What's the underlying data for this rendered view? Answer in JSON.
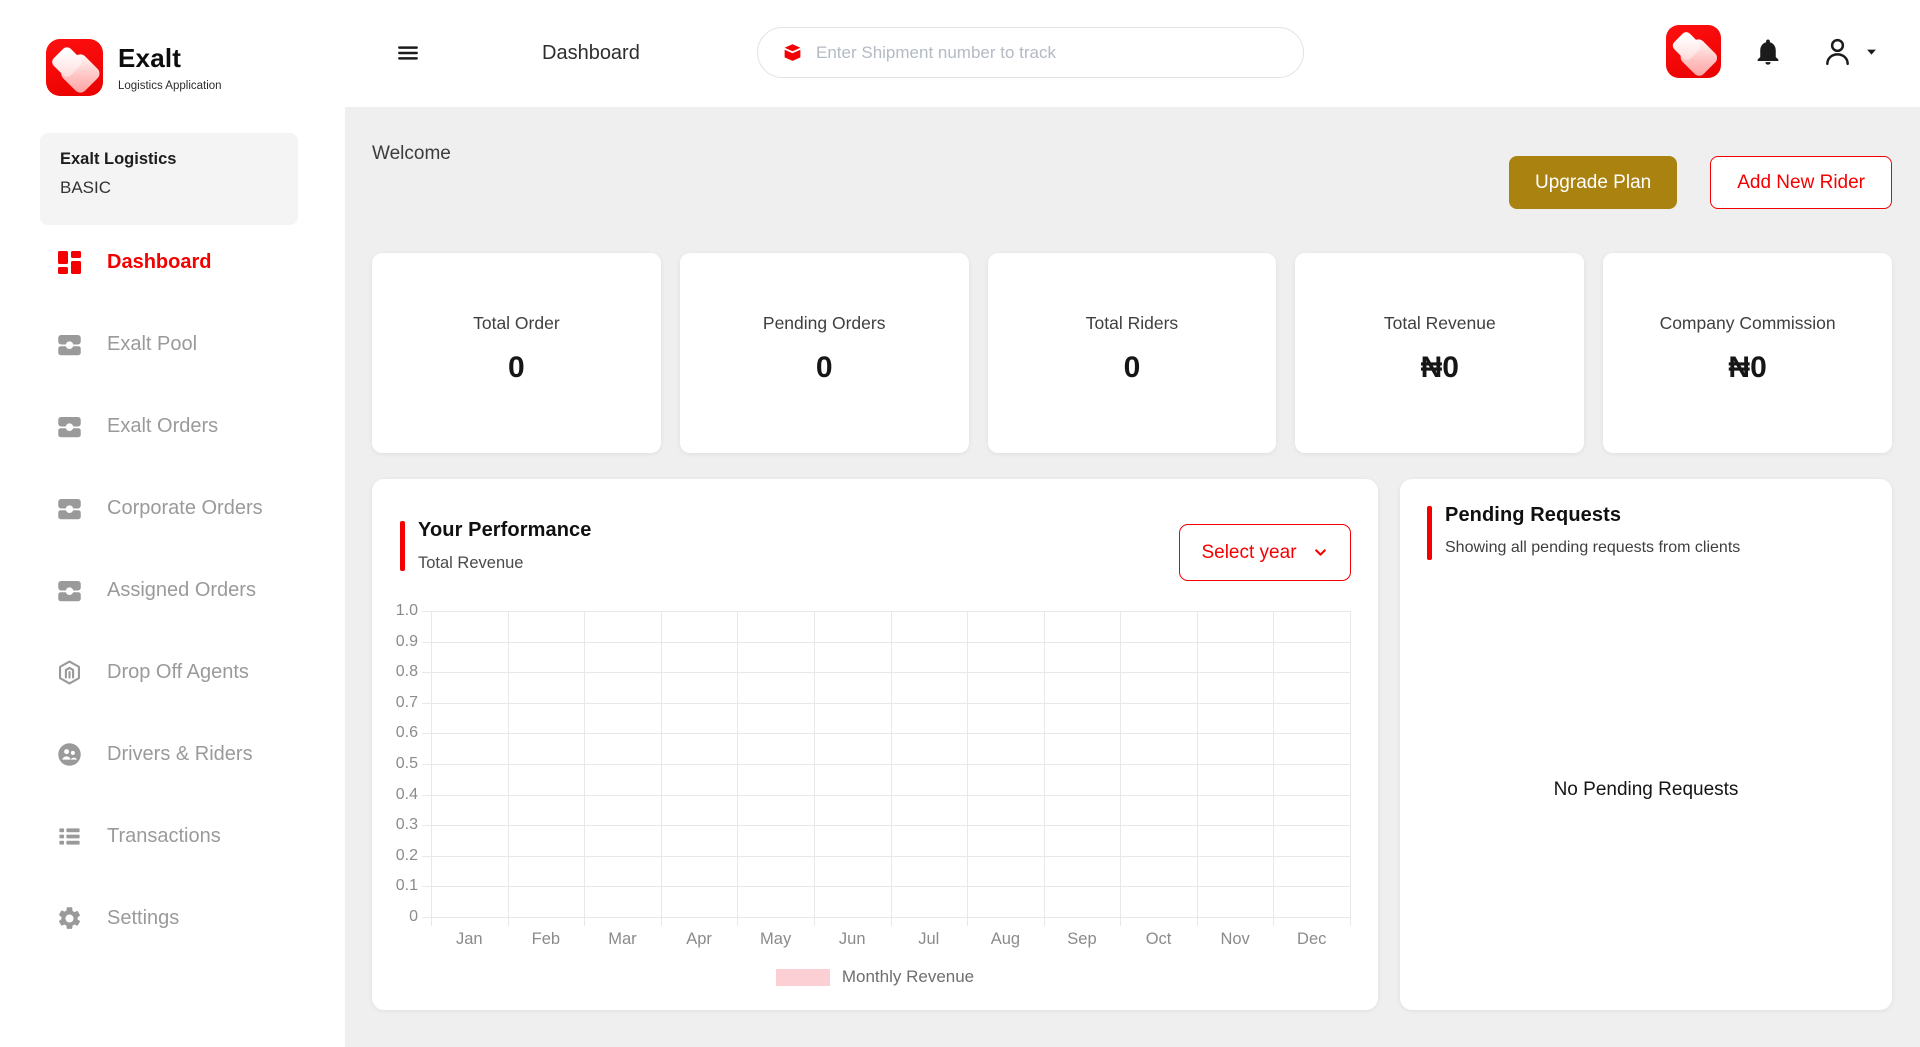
{
  "brand": {
    "name": "Exalt",
    "tagline": "Logistics Application"
  },
  "topbar": {
    "menu_icon": "hamburger-icon",
    "title": "Dashboard",
    "search": {
      "icon": "package-icon",
      "placeholder": "Enter Shipment number to track",
      "value": ""
    },
    "action_icons": [
      "app-logo-icon",
      "bell-icon",
      "person-icon",
      "caret-down-icon"
    ]
  },
  "sidebar": {
    "org": {
      "name": "Exalt Logistics",
      "plan": "BASIC"
    },
    "items": [
      {
        "label": "Dashboard",
        "icon": "dashboard-icon",
        "active": true
      },
      {
        "label": "Exalt Pool",
        "icon": "orders-box-icon",
        "active": false
      },
      {
        "label": "Exalt Orders",
        "icon": "orders-box-icon",
        "active": false
      },
      {
        "label": "Corporate Orders",
        "icon": "orders-box-icon",
        "active": false
      },
      {
        "label": "Assigned Orders",
        "icon": "orders-box-icon",
        "active": false
      },
      {
        "label": "Drop Off Agents",
        "icon": "hexagon-agent-icon",
        "active": false
      },
      {
        "label": "Drivers & Riders",
        "icon": "people-circle-icon",
        "active": false
      },
      {
        "label": "Transactions",
        "icon": "list-icon",
        "active": false
      },
      {
        "label": "Settings",
        "icon": "gear-icon",
        "active": false
      }
    ]
  },
  "main": {
    "welcome": "Welcome",
    "upgrade_button": "Upgrade Plan",
    "add_rider_button": "Add New Rider",
    "stats": [
      {
        "label": "Total Order",
        "value": "0"
      },
      {
        "label": "Pending Orders",
        "value": "0"
      },
      {
        "label": "Total Riders",
        "value": "0"
      },
      {
        "label": "Total Revenue",
        "value": "₦0"
      },
      {
        "label": "Company Commission",
        "value": "₦0"
      }
    ],
    "performance": {
      "title": "Your Performance",
      "subtitle": "Total Revenue",
      "year_select": "Select year"
    },
    "pending": {
      "title": "Pending Requests",
      "subtitle": "Showing all pending requests from clients",
      "empty_message": "No Pending Requests"
    }
  },
  "colors": {
    "accent_red": "#f40000",
    "gold_button": "#a9820f",
    "legend_pink": "#fbcfd4",
    "sidebar_muted": "#9a9a9a",
    "main_background": "#efefef"
  },
  "chart_data": {
    "type": "bar",
    "title": "Your Performance",
    "subtitle": "Total Revenue",
    "categories": [
      "Jan",
      "Feb",
      "Mar",
      "Apr",
      "May",
      "Jun",
      "Jul",
      "Aug",
      "Sep",
      "Oct",
      "Nov",
      "Dec"
    ],
    "series": [
      {
        "name": "Monthly Revenue",
        "color": "#fbcfd4",
        "values": [
          0,
          0,
          0,
          0,
          0,
          0,
          0,
          0,
          0,
          0,
          0,
          0
        ]
      }
    ],
    "xlabel": "",
    "ylabel": "",
    "ylim": [
      0,
      1.0
    ],
    "ytick_labels": [
      "1.0",
      "0.9",
      "0.8",
      "0.7",
      "0.6",
      "0.5",
      "0.4",
      "0.3",
      "0.2",
      "0.1",
      "0"
    ],
    "grid": true,
    "legend_position": "bottom"
  }
}
